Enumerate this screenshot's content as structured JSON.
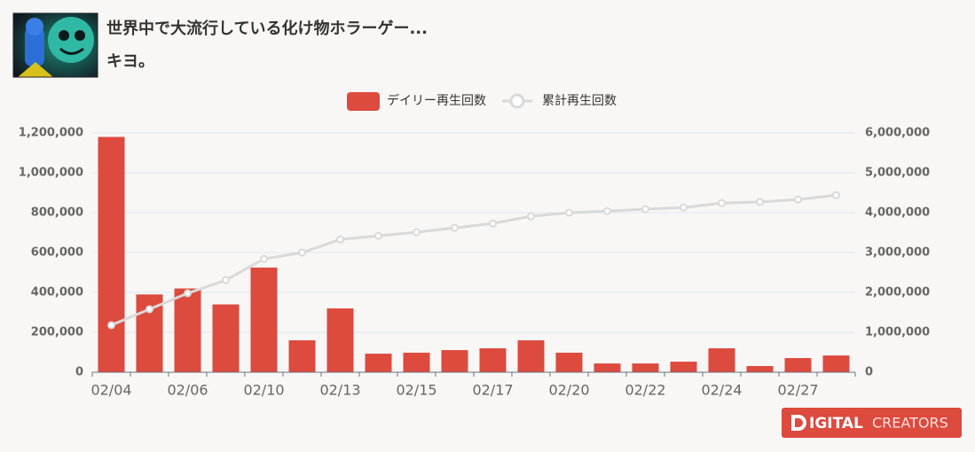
{
  "video": {
    "title": "世界中で大流行している化け物ホラーゲー...",
    "channel": "キヨ。"
  },
  "logo": {
    "main": "IGITAL",
    "sub": "CREATORS"
  },
  "chart_data": {
    "type": "bar",
    "categories": [
      "02/04",
      null,
      "02/06",
      null,
      "02/10",
      null,
      "02/13",
      null,
      "02/15",
      null,
      "02/17",
      null,
      "02/20",
      null,
      "02/22",
      null,
      "02/24",
      null,
      "02/27",
      null
    ],
    "series": [
      {
        "name": "デイリー再生回数",
        "type": "bar",
        "color": "#dd4a3e",
        "values": [
          1180000,
          390000,
          420000,
          340000,
          525000,
          160000,
          320000,
          93000,
          98000,
          111000,
          120000,
          160000,
          98000,
          44000,
          44000,
          53000,
          120000,
          31000,
          71000,
          84000
        ]
      },
      {
        "name": "累計再生回数",
        "type": "line",
        "axis": "y2",
        "color": "#d9d9d9",
        "values": [
          1180000,
          1580000,
          1980000,
          2310000,
          2840000,
          3000000,
          3330000,
          3420000,
          3510000,
          3620000,
          3730000,
          3910000,
          4000000,
          4040000,
          4090000,
          4130000,
          4240000,
          4270000,
          4330000,
          4440000
        ]
      }
    ],
    "ylim": [
      0,
      1200000
    ],
    "yticks": [
      0,
      {
        "value": 200000,
        "label": "200,000"
      },
      {
        "value": 400000,
        "label": "400,000"
      },
      {
        "value": 600000,
        "label": "600,000"
      },
      {
        "value": 800000,
        "label": "800,000"
      },
      {
        "value": 1000000,
        "label": "1,000,000"
      },
      {
        "value": 1200000,
        "label": "1,200,000"
      }
    ],
    "y2lim": [
      0,
      6000000
    ],
    "y2ticks": [
      0,
      {
        "value": 1000000,
        "label": "1,000,000"
      },
      {
        "value": 2000000,
        "label": "2,000,000"
      },
      {
        "value": 3000000,
        "label": "3,000,000"
      },
      {
        "value": 4000000,
        "label": "4,000,000"
      },
      {
        "value": 5000000,
        "label": "5,000,000"
      },
      {
        "value": 6000000,
        "label": "6,000,000"
      }
    ],
    "grid": true,
    "legend": "top"
  }
}
